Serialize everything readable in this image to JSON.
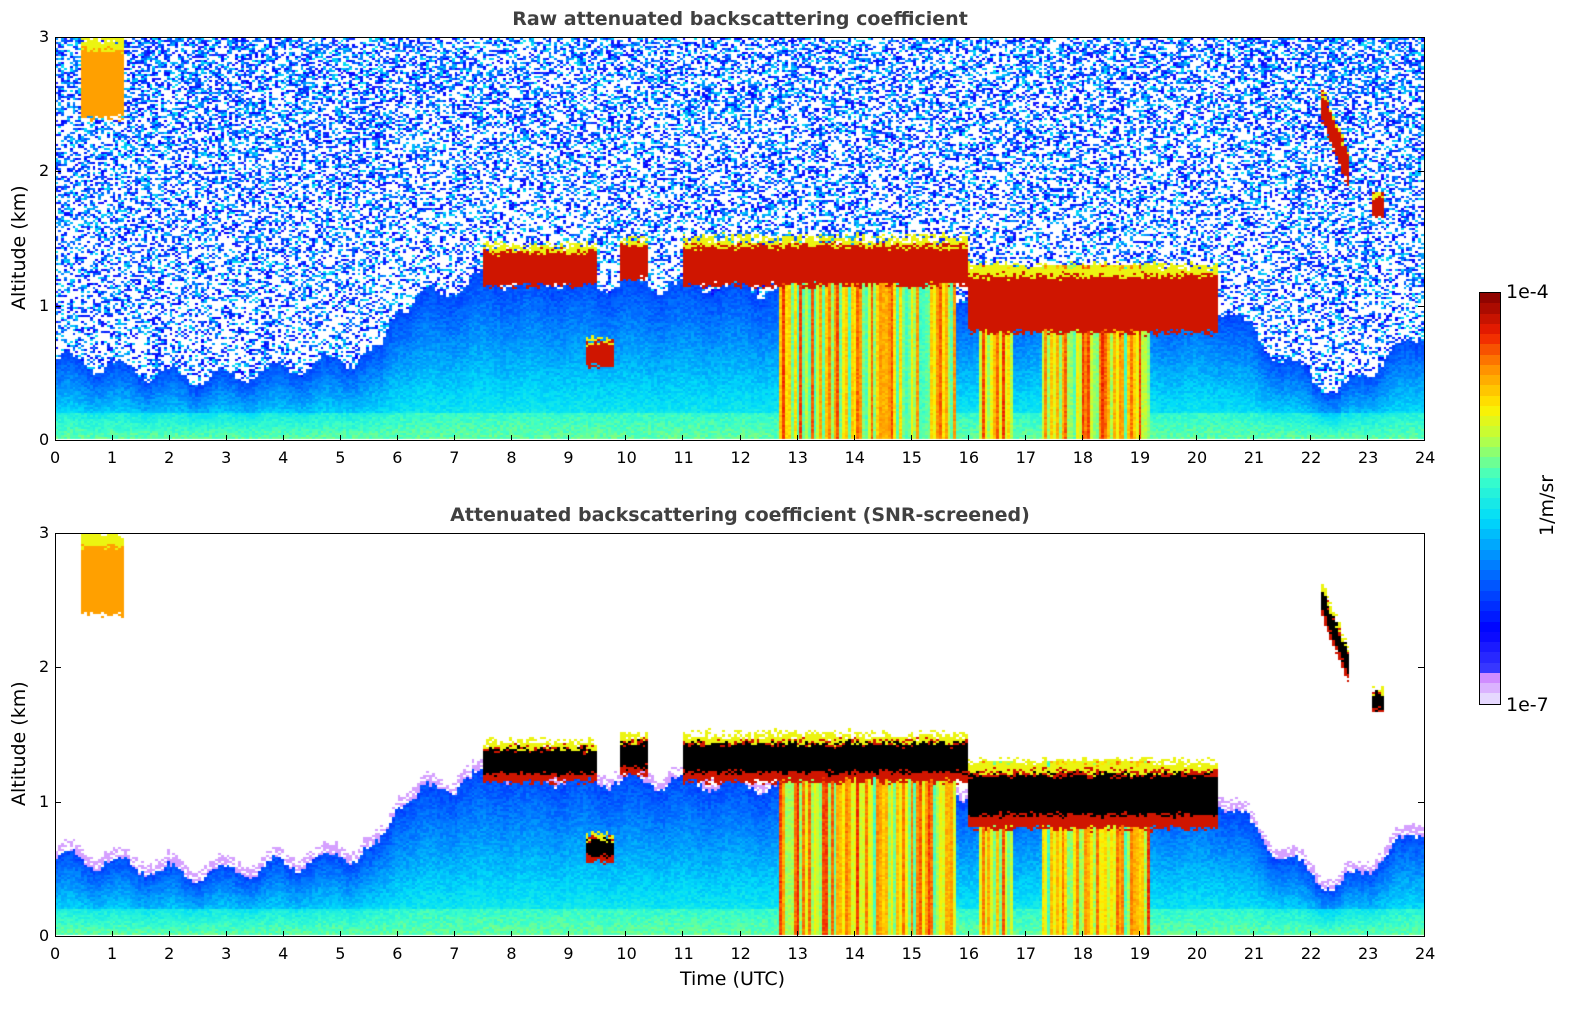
{
  "chart_data": [
    {
      "type": "heatmap",
      "title": "Raw attenuated backscattering coefficient",
      "xlabel": "",
      "ylabel": "Altitude (km)",
      "xlim": [
        0,
        24
      ],
      "ylim": [
        0,
        3
      ],
      "xticks": [
        "0",
        "1",
        "2",
        "3",
        "4",
        "5",
        "6",
        "7",
        "8",
        "9",
        "10",
        "11",
        "12",
        "13",
        "14",
        "15",
        "16",
        "17",
        "18",
        "19",
        "20",
        "21",
        "22",
        "23",
        "24"
      ],
      "yticks": [
        "0",
        "1",
        "2",
        "3"
      ],
      "screened": false,
      "features": {
        "boundary_layer_top_km": [
          [
            0,
            0.6
          ],
          [
            2.5,
            0.45
          ],
          [
            4.5,
            0.55
          ],
          [
            5.7,
            0.65
          ],
          [
            6,
            1.0
          ],
          [
            7.5,
            1.2
          ],
          [
            20.5,
            1.0
          ],
          [
            21.5,
            0.6
          ],
          [
            22.5,
            0.35
          ],
          [
            24,
            0.8
          ]
        ],
        "cloud_layers": [
          {
            "start_utc": 0.45,
            "end_utc": 1.2,
            "base_km": 2.4,
            "top_km": 3.0,
            "intensity": "medium-high"
          },
          {
            "start_utc": 7.5,
            "end_utc": 9.5,
            "base_km": 1.15,
            "top_km": 1.45,
            "intensity": "high"
          },
          {
            "start_utc": 9.3,
            "end_utc": 9.8,
            "base_km": 0.55,
            "top_km": 0.75,
            "intensity": "high"
          },
          {
            "start_utc": 9.9,
            "end_utc": 10.4,
            "base_km": 1.2,
            "top_km": 1.5,
            "intensity": "high"
          },
          {
            "start_utc": 11.0,
            "end_utc": 16.0,
            "base_km": 1.15,
            "top_km": 1.5,
            "intensity": "high"
          },
          {
            "start_utc": 16.0,
            "end_utc": 20.4,
            "base_km": 0.8,
            "top_km": 1.3,
            "intensity": "high"
          },
          {
            "start_utc": 22.2,
            "end_utc": 22.7,
            "base_km": 1.95,
            "top_km": 2.65,
            "intensity": "high"
          },
          {
            "start_utc": 23.1,
            "end_utc": 23.3,
            "base_km": 1.65,
            "top_km": 1.85,
            "intensity": "high"
          }
        ],
        "precipitation_shafts_utc": [
          [
            12.7,
            15.8
          ],
          [
            16.2,
            16.8
          ],
          [
            17.3,
            19.2
          ]
        ]
      }
    },
    {
      "type": "heatmap",
      "title": "Attenuated backscattering coefficient (SNR-screened)",
      "xlabel": "Time (UTC)",
      "ylabel": "Altitude (km)",
      "xlim": [
        0,
        24
      ],
      "ylim": [
        0,
        3
      ],
      "xticks": [
        "0",
        "1",
        "2",
        "3",
        "4",
        "5",
        "6",
        "7",
        "8",
        "9",
        "10",
        "11",
        "12",
        "13",
        "14",
        "15",
        "16",
        "17",
        "18",
        "19",
        "20",
        "21",
        "22",
        "23",
        "24"
      ],
      "yticks": [
        "0",
        "1",
        "2",
        "3"
      ],
      "screened": true
    }
  ],
  "colorbar": {
    "label": "1/m/sr",
    "max_label": "1e-4",
    "min_label": "1e-7",
    "min_value": 1e-07,
    "max_value": 0.0001,
    "scale": "log",
    "colormap": "jet (with light-lavender low end)"
  }
}
